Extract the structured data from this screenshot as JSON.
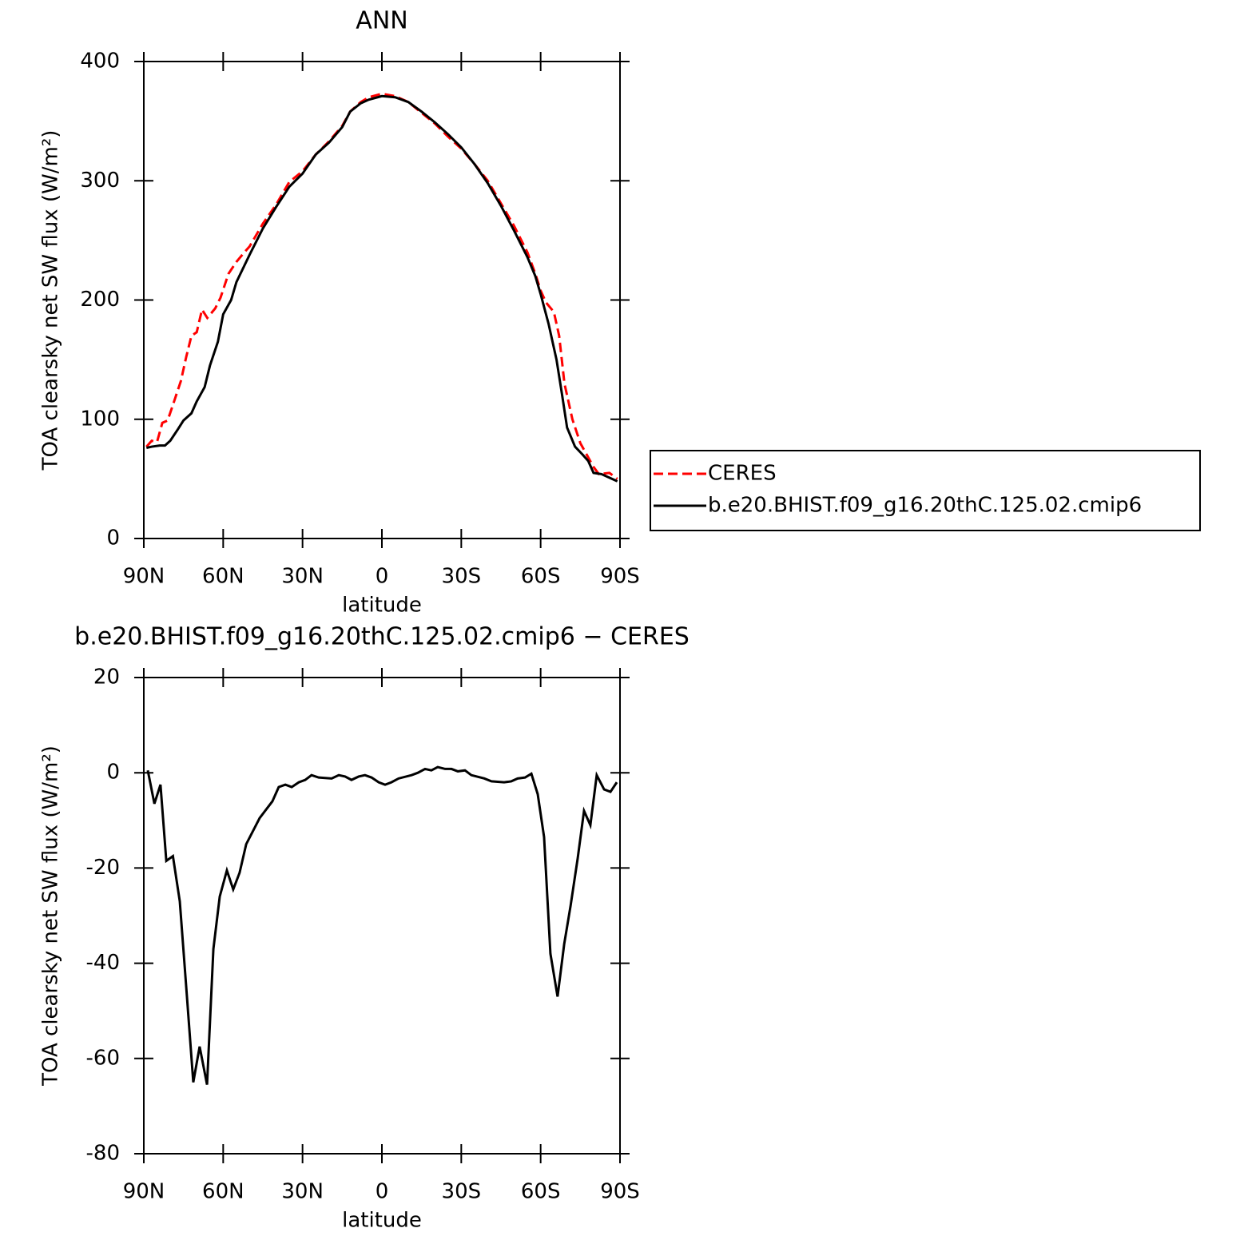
{
  "chart_data": [
    {
      "type": "line",
      "title": "ANN",
      "xlabel": "latitude",
      "ylabel": "TOA clearsky net SW flux (W/m²)",
      "xlim": [
        90,
        -90
      ],
      "xticks": [
        {
          "value": 90,
          "label": "90N"
        },
        {
          "value": 60,
          "label": "60N"
        },
        {
          "value": 30,
          "label": "30N"
        },
        0,
        {
          "value": -30,
          "label": "30S"
        },
        {
          "value": -60,
          "label": "60S"
        },
        {
          "value": -90,
          "label": "90S"
        }
      ],
      "ylim": [
        0,
        400
      ],
      "yticks": [
        0,
        100,
        200,
        300,
        400
      ],
      "legend": "outside right",
      "series": [
        {
          "name": "CERES",
          "color": "#ff0000",
          "linestyle": "dashed",
          "x": [
            89,
            87,
            85,
            83,
            81,
            79,
            76,
            74,
            72,
            70,
            68,
            66,
            63,
            61,
            58,
            55,
            52,
            50,
            45,
            40,
            35,
            30,
            25,
            20,
            15,
            12,
            8,
            5,
            0,
            -5,
            -10,
            -15,
            -20,
            -25,
            -30,
            -35,
            -40,
            -45,
            -50,
            -55,
            -58,
            -60,
            -62,
            -65,
            -67,
            -69,
            -72,
            -75,
            -77,
            -80,
            -82,
            -86,
            -89
          ],
          "values": [
            77,
            82,
            81,
            97,
            99,
            112,
            132,
            152,
            170,
            173,
            192,
            185,
            193,
            202,
            222,
            232,
            240,
            245,
            264,
            280,
            299,
            308,
            322,
            333,
            346,
            358,
            366,
            370,
            373,
            371,
            366,
            357,
            348,
            337,
            327,
            314,
            300,
            281,
            262,
            240,
            222,
            208,
            198,
            190,
            170,
            130,
            100,
            80,
            72,
            60,
            54,
            55,
            50
          ]
        },
        {
          "name": "b.e20.BHIST.f09_g16.20thC.125.02.cmip6",
          "color": "#000000",
          "linestyle": "solid",
          "x": [
            89,
            87,
            84,
            82,
            80,
            77,
            75,
            72,
            70,
            67,
            65,
            62,
            60,
            57,
            55,
            50,
            45,
            40,
            35,
            30,
            25,
            20,
            15,
            12,
            8,
            5,
            0,
            -5,
            -10,
            -15,
            -20,
            -25,
            -30,
            -35,
            -40,
            -45,
            -50,
            -55,
            -58,
            -60,
            -63,
            -66,
            -68,
            -70,
            -73,
            -76,
            -78,
            -80,
            -83,
            -86,
            -89
          ],
          "values": [
            76,
            77,
            78,
            78,
            82,
            92,
            99,
            105,
            115,
            127,
            145,
            165,
            188,
            200,
            215,
            238,
            260,
            278,
            295,
            306,
            322,
            332,
            345,
            358,
            365,
            368,
            371,
            370,
            366,
            358,
            349,
            339,
            328,
            314,
            298,
            279,
            258,
            236,
            220,
            205,
            180,
            150,
            122,
            93,
            77,
            70,
            65,
            55,
            54,
            51,
            48
          ]
        }
      ]
    },
    {
      "type": "line",
      "title": "b.e20.BHIST.f09_g16.20thC.125.02.cmip6 − CERES",
      "xlabel": "latitude",
      "ylabel": "TOA clearsky net SW flux (W/m²)",
      "xlim": [
        90,
        -90
      ],
      "xticks": [
        {
          "value": 90,
          "label": "90N"
        },
        {
          "value": 60,
          "label": "60N"
        },
        {
          "value": 30,
          "label": "30N"
        },
        0,
        {
          "value": -30,
          "label": "30S"
        },
        {
          "value": -60,
          "label": "60S"
        },
        {
          "value": -90,
          "label": "90S"
        }
      ],
      "ylim": [
        -80,
        20
      ],
      "yticks": [
        -80,
        -60,
        -40,
        -20,
        0,
        20
      ],
      "series": [
        {
          "color": "#000000",
          "linestyle": "solid",
          "x": [
            88.5,
            86,
            83.7,
            81.5,
            79,
            76.4,
            73.7,
            71.3,
            68.9,
            66.1,
            63.7,
            61.3,
            58.6,
            56.2,
            53.8,
            51.3,
            46.2,
            41.4,
            39,
            36.5,
            34.1,
            31.4,
            29,
            26.6,
            23.9,
            19,
            16.3,
            13.9,
            11.5,
            8.8,
            6.4,
            3.9,
            1.2,
            -1.2,
            -3.6,
            -6.3,
            -11.2,
            -13.6,
            -16.3,
            -18.7,
            -21.1,
            -23.9,
            -26.3,
            -28.7,
            -31.4,
            -33.8,
            -38.7,
            -41.4,
            -46.2,
            -48.9,
            -51.3,
            -54.1,
            -56.5,
            -58.9,
            -61.3,
            -63.7,
            -66.4,
            -68.9,
            -71.3,
            -74,
            -76.4,
            -78.8,
            -81.2,
            -84,
            -86.4,
            -88.8
          ],
          "values": [
            0.5,
            -6.5,
            -2.5,
            -18.5,
            -17.5,
            -27,
            -47,
            -65,
            -57.5,
            -65.5,
            -37,
            -26,
            -20.5,
            -24.5,
            -21,
            -15,
            -9.5,
            -6,
            -3,
            -2.5,
            -3,
            -2,
            -1.5,
            -0.5,
            -1,
            -1.2,
            -0.5,
            -0.8,
            -1.5,
            -0.8,
            -0.5,
            -1,
            -2,
            -2.5,
            -2,
            -1.2,
            -0.5,
            0,
            0.8,
            0.5,
            1.2,
            0.8,
            0.8,
            0.3,
            0.5,
            -0.5,
            -1.2,
            -1.8,
            -2,
            -1.8,
            -1.2,
            -1,
            -0.2,
            -4.5,
            -13.5,
            -38,
            -47,
            -36,
            -28,
            -18,
            -8,
            -11,
            -0.5,
            -3.5,
            -4,
            -2
          ]
        }
      ]
    }
  ]
}
